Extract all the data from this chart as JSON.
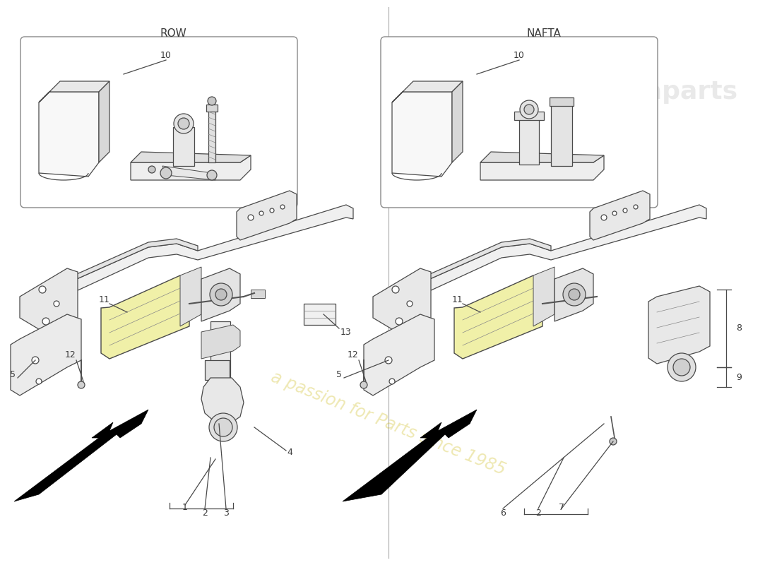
{
  "background_color": "#ffffff",
  "left_label": "ROW",
  "right_label": "NAFTA",
  "watermark_text": "a passion for Parts since 1985",
  "label_color": "#3a3a3a",
  "line_color": "#4a4a4a",
  "divider_color": "#999999",
  "highlight_fill": "#f5f0a0",
  "part_stroke": "#4a4a4a",
  "part_fill_light": "#f0f0f0",
  "part_fill_mid": "#e0e0e0",
  "part_fill_dark": "#cccccc"
}
